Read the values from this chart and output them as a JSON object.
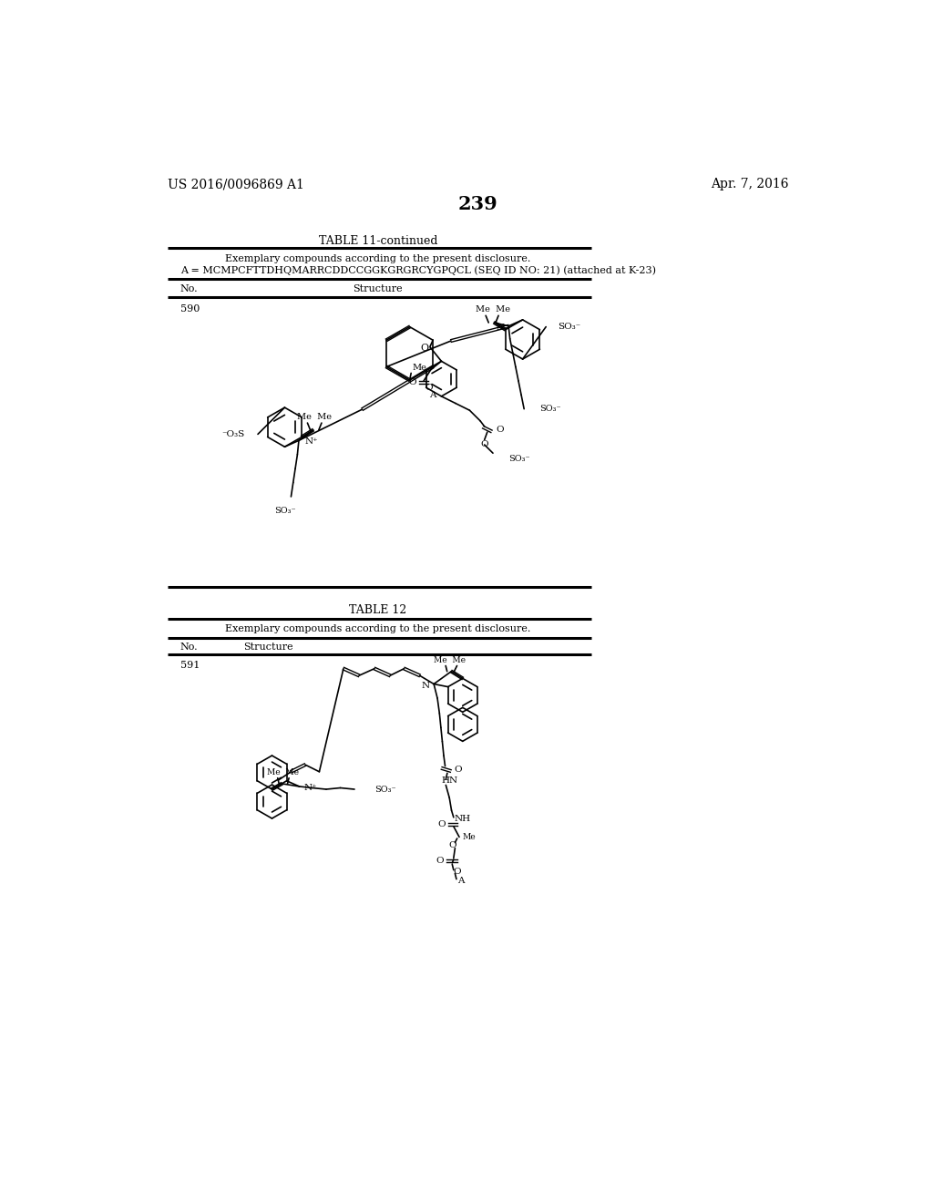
{
  "background_color": "#ffffff",
  "header_left": "US 2016/0096869 A1",
  "header_right": "Apr. 7, 2016",
  "page_number": "239",
  "table11_title": "TABLE 11-continued",
  "table11_desc1": "Exemplary compounds according to the present disclosure.",
  "table11_desc2": "A = MCMPCFTTDHQMARRCDDCCGGKGRGRCYGPQCL (SEQ ID NO: 21) (attached at K-23)",
  "table11_col1": "No.",
  "table11_col2": "Structure",
  "compound_590": "590",
  "table12_title": "TABLE 12",
  "table12_desc": "Exemplary compounds according to the present disclosure.",
  "table12_col1": "No.",
  "table12_col2": "Structure",
  "compound_591": "591"
}
